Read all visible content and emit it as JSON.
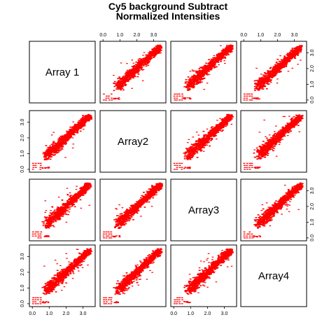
{
  "title": {
    "line1": "Cy5 background Subtract",
    "line2": "Normalized Intensities"
  },
  "colors": {
    "points": "#ff0000",
    "frame": "#000000",
    "background": "#ffffff"
  },
  "chart_data": {
    "type": "scatter",
    "subtype": "scatterplot-matrix",
    "variables": [
      "Array 1",
      "Array2",
      "Array3",
      "Array4"
    ],
    "axis_ticks": [
      0.0,
      1.0,
      2.0,
      3.0
    ],
    "axis_tick_labels": [
      "0.0",
      "1.0",
      "2.0",
      "3.0"
    ],
    "axis_range": [
      -0.05,
      3.6
    ],
    "grid": false,
    "point_marker": "dash",
    "relationship": "strong positive near-linear correlation between every pair of arrays; dense cloud from about 0.8 to 3.4 on both axes, plus a sparse cluster near zero",
    "clusters": {
      "main": {
        "x_range": [
          0.8,
          3.4
        ],
        "y_range": [
          0.8,
          3.4
        ],
        "spread": 0.15
      },
      "low_block": {
        "x_range": [
          0.0,
          0.5
        ],
        "y_range": [
          0.0,
          0.5
        ]
      }
    },
    "panels": [
      {
        "row": 0,
        "col": 0,
        "diagonal": true,
        "label": "Array 1"
      },
      {
        "row": 0,
        "col": 1,
        "x": "Array2",
        "y": "Array 1"
      },
      {
        "row": 0,
        "col": 2,
        "x": "Array3",
        "y": "Array 1"
      },
      {
        "row": 0,
        "col": 3,
        "x": "Array4",
        "y": "Array 1"
      },
      {
        "row": 1,
        "col": 0,
        "x": "Array 1",
        "y": "Array2"
      },
      {
        "row": 1,
        "col": 1,
        "diagonal": true,
        "label": "Array2"
      },
      {
        "row": 1,
        "col": 2,
        "x": "Array3",
        "y": "Array2"
      },
      {
        "row": 1,
        "col": 3,
        "x": "Array4",
        "y": "Array2"
      },
      {
        "row": 2,
        "col": 0,
        "x": "Array 1",
        "y": "Array3"
      },
      {
        "row": 2,
        "col": 1,
        "x": "Array2",
        "y": "Array3"
      },
      {
        "row": 2,
        "col": 2,
        "diagonal": true,
        "label": "Array3"
      },
      {
        "row": 2,
        "col": 3,
        "x": "Array4",
        "y": "Array3"
      },
      {
        "row": 3,
        "col": 0,
        "x": "Array 1",
        "y": "Array4"
      },
      {
        "row": 3,
        "col": 1,
        "x": "Array2",
        "y": "Array4"
      },
      {
        "row": 3,
        "col": 2,
        "x": "Array3",
        "y": "Array4"
      },
      {
        "row": 3,
        "col": 3,
        "diagonal": true,
        "label": "Array4"
      }
    ]
  }
}
